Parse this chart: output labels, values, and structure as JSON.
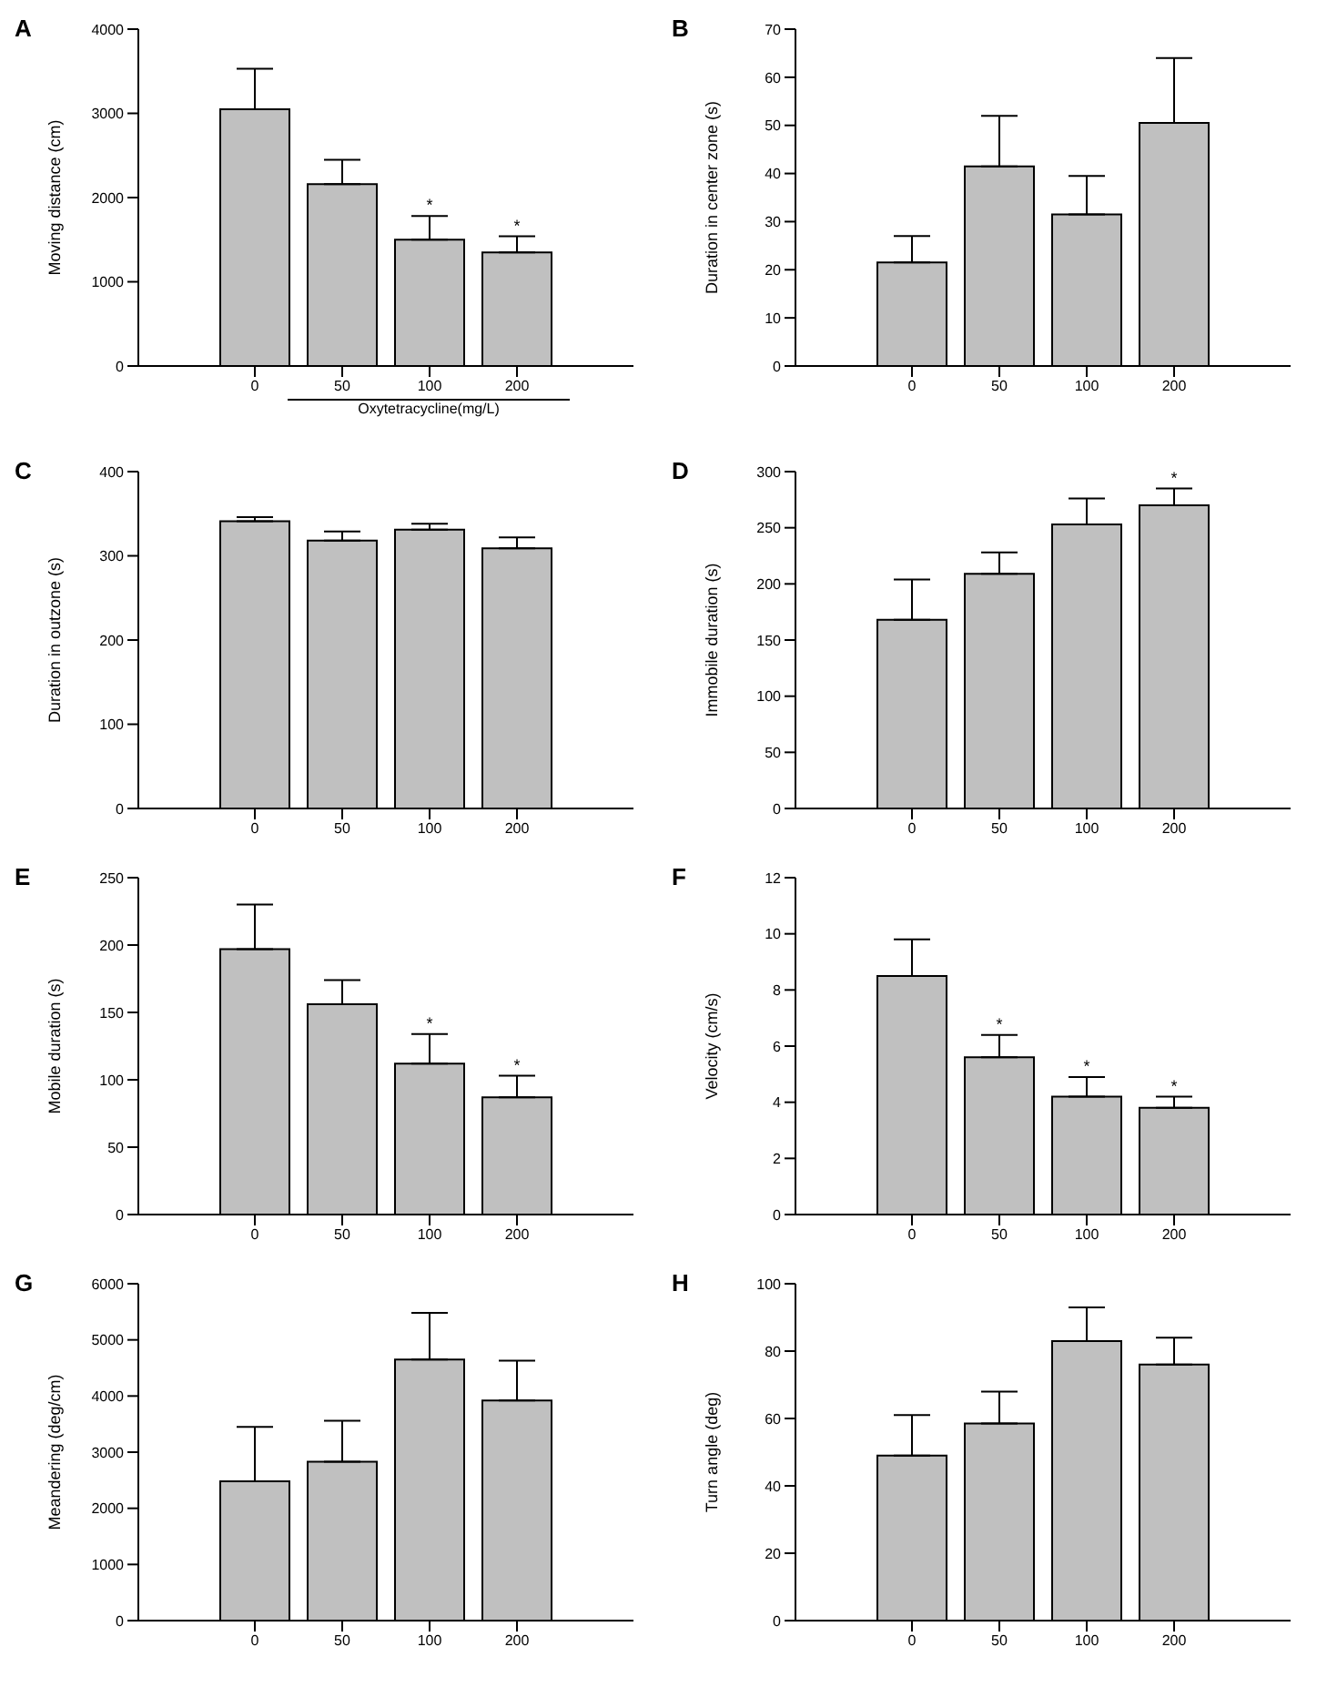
{
  "chart_data": [
    {
      "type": "bar",
      "title": "A",
      "ylabel": "Moving distance (cm)",
      "xlabel": "Oxytetracycline(mg/L)",
      "categories": [
        "0",
        "50",
        "100",
        "200"
      ],
      "values": [
        3050,
        2160,
        1500,
        1350
      ],
      "errors": [
        [
          3050,
          3530
        ],
        [
          2160,
          2450
        ],
        [
          1500,
          1780
        ],
        [
          1350,
          1540
        ]
      ],
      "color": "#c0c0c0",
      "ylim": [
        0,
        4000
      ],
      "yticks": [
        0,
        1000,
        2000,
        3000,
        4000
      ],
      "annotations": [
        {
          "text": "*",
          "x": "100",
          "y": 1500
        },
        {
          "text": "*",
          "x": "200",
          "y": 1350
        }
      ]
    },
    {
      "type": "bar",
      "title": "B",
      "ylabel": "Duration in center zone (s)",
      "categories": [
        "0",
        "50",
        "100",
        "200"
      ],
      "values": [
        21.5,
        41.5,
        31.5,
        50.5
      ],
      "errors": [
        [
          21.5,
          27
        ],
        [
          41.5,
          52
        ],
        [
          31.5,
          39.5
        ],
        [
          50.5,
          64
        ]
      ],
      "color": "#c0c0c0",
      "ylim": [
        0,
        70
      ],
      "yticks": [
        0,
        10,
        20,
        30,
        40,
        50,
        60,
        70
      ]
    },
    {
      "type": "bar",
      "title": "C",
      "ylabel": "Duration in outzone (s)",
      "categories": [
        "0",
        "50",
        "100",
        "200"
      ],
      "values": [
        341,
        318,
        331,
        309
      ],
      "errors": [
        [
          341,
          346
        ],
        [
          318,
          329
        ],
        [
          331,
          338
        ],
        [
          309,
          322
        ]
      ],
      "color": "#c0c0c0",
      "ylim": [
        0,
        400
      ],
      "yticks": [
        0,
        100,
        200,
        300,
        400
      ]
    },
    {
      "type": "bar",
      "title": "D",
      "ylabel": "Immobile duration (s)",
      "categories": [
        "0",
        "50",
        "100",
        "200"
      ],
      "values": [
        168,
        209,
        253,
        270
      ],
      "errors": [
        [
          168,
          204
        ],
        [
          209,
          228
        ],
        [
          253,
          276
        ],
        [
          270,
          285
        ]
      ],
      "color": "#c0c0c0",
      "ylim": [
        0,
        300
      ],
      "yticks": [
        0,
        50,
        100,
        150,
        200,
        250,
        300
      ],
      "annotations": [
        {
          "text": "*",
          "x": "200",
          "y": 270
        }
      ]
    },
    {
      "type": "bar",
      "title": "E",
      "ylabel": "Mobile duration (s)",
      "categories": [
        "0",
        "50",
        "100",
        "200"
      ],
      "values": [
        197,
        156,
        112,
        87
      ],
      "errors": [
        [
          197,
          230
        ],
        [
          156,
          174
        ],
        [
          112,
          134
        ],
        [
          87,
          103
        ]
      ],
      "color": "#c0c0c0",
      "ylim": [
        0,
        250
      ],
      "yticks": [
        0,
        50,
        100,
        150,
        200,
        250
      ],
      "annotations": [
        {
          "text": "*",
          "x": "100",
          "y": 112
        },
        {
          "text": "*",
          "x": "200",
          "y": 87
        }
      ]
    },
    {
      "type": "bar",
      "title": "F",
      "ylabel": "Velocity (cm/s)",
      "categories": [
        "0",
        "50",
        "100",
        "200"
      ],
      "values": [
        8.5,
        5.6,
        4.2,
        3.8
      ],
      "errors": [
        [
          8.5,
          9.8
        ],
        [
          5.6,
          6.4
        ],
        [
          4.2,
          4.9
        ],
        [
          3.8,
          4.2
        ]
      ],
      "color": "#c0c0c0",
      "ylim": [
        0,
        12
      ],
      "yticks": [
        0,
        2,
        4,
        6,
        8,
        10,
        12
      ],
      "annotations": [
        {
          "text": "*",
          "x": "50",
          "y": 5.6
        },
        {
          "text": "*",
          "x": "100",
          "y": 4.2
        },
        {
          "text": "*",
          "x": "200",
          "y": 3.8
        }
      ]
    },
    {
      "type": "bar",
      "title": "G",
      "ylabel": "Meandering (deg/cm)",
      "categories": [
        "0",
        "50",
        "100",
        "200"
      ],
      "values": [
        2480,
        2830,
        4650,
        3920
      ],
      "errors": [
        [
          2480,
          3450
        ],
        [
          2830,
          3560
        ],
        [
          4650,
          5480
        ],
        [
          3920,
          4630
        ]
      ],
      "color": "#c0c0c0",
      "ylim": [
        0,
        6000
      ],
      "yticks": [
        0,
        1000,
        2000,
        3000,
        4000,
        5000,
        6000
      ]
    },
    {
      "type": "bar",
      "title": "H",
      "ylabel": "Turn angle (deg)",
      "categories": [
        "0",
        "50",
        "100",
        "200"
      ],
      "values": [
        49,
        58.5,
        83,
        76
      ],
      "errors": [
        [
          49,
          61
        ],
        [
          58.5,
          68
        ],
        [
          83,
          93
        ],
        [
          76,
          84
        ]
      ],
      "color": "#c0c0c0",
      "ylim": [
        0,
        100
      ],
      "yticks": [
        0,
        20,
        40,
        60,
        80,
        100
      ]
    }
  ]
}
